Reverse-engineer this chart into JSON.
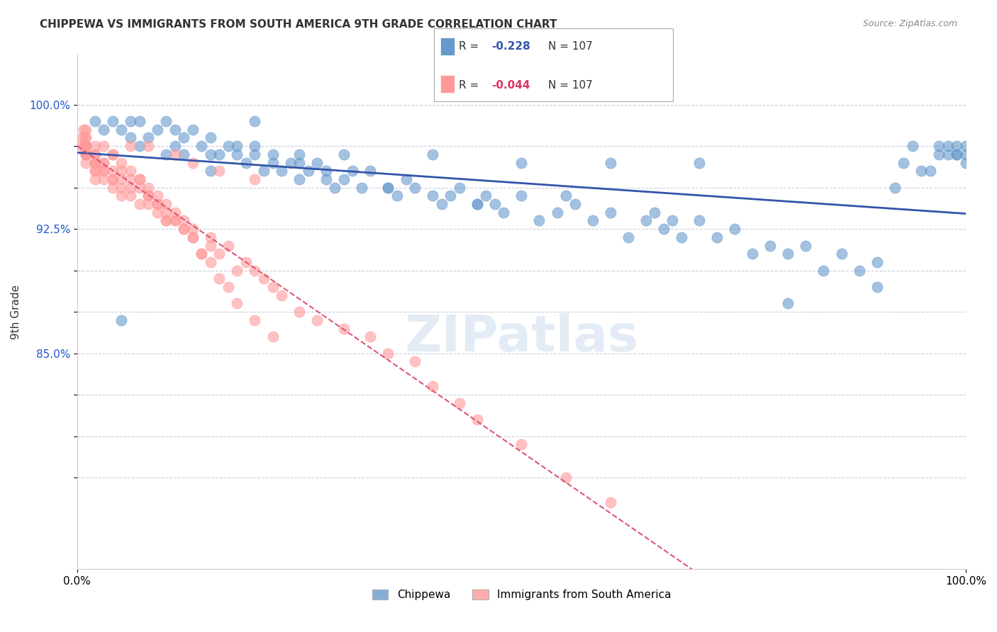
{
  "title": "CHIPPEWA VS IMMIGRANTS FROM SOUTH AMERICA 9TH GRADE CORRELATION CHART",
  "source_text": "Source: ZipAtlas.com",
  "xlabel_bottom": "",
  "ylabel": "9th Grade",
  "watermark": "ZIPatlas",
  "xlim": [
    0.0,
    1.0
  ],
  "ylim": [
    0.72,
    1.03
  ],
  "yticks": [
    0.775,
    0.8,
    0.825,
    0.85,
    0.875,
    0.9,
    0.925,
    0.95,
    0.975,
    1.0
  ],
  "ytick_labels": [
    "",
    "",
    "",
    "85.0%",
    "",
    "",
    "92.5%",
    "",
    "",
    "100.0%"
  ],
  "xtick_labels": [
    "0.0%",
    "100.0%"
  ],
  "legend_blue_r": "R = ",
  "legend_blue_r_val": "-0.228",
  "legend_blue_n": "N = 107",
  "legend_pink_r": "R = ",
  "legend_pink_r_val": "-0.044",
  "legend_pink_n": "N = 107",
  "blue_color": "#6699CC",
  "pink_color": "#FF9999",
  "blue_line_color": "#3355AA",
  "pink_line_color": "#DD5577",
  "grid_color": "#CCCCDD",
  "background_color": "#FFFFFF",
  "blue_scatter_x": [
    0.02,
    0.03,
    0.04,
    0.05,
    0.06,
    0.06,
    0.07,
    0.07,
    0.08,
    0.09,
    0.1,
    0.11,
    0.11,
    0.12,
    0.12,
    0.13,
    0.14,
    0.15,
    0.16,
    0.17,
    0.18,
    0.18,
    0.19,
    0.2,
    0.2,
    0.21,
    0.22,
    0.22,
    0.23,
    0.24,
    0.25,
    0.26,
    0.27,
    0.28,
    0.28,
    0.29,
    0.3,
    0.31,
    0.32,
    0.33,
    0.35,
    0.36,
    0.37,
    0.38,
    0.4,
    0.41,
    0.42,
    0.43,
    0.45,
    0.46,
    0.47,
    0.48,
    0.5,
    0.52,
    0.54,
    0.56,
    0.58,
    0.6,
    0.62,
    0.64,
    0.65,
    0.66,
    0.67,
    0.68,
    0.7,
    0.72,
    0.74,
    0.76,
    0.78,
    0.8,
    0.82,
    0.84,
    0.86,
    0.88,
    0.9,
    0.92,
    0.93,
    0.94,
    0.95,
    0.96,
    0.97,
    0.97,
    0.98,
    0.98,
    0.99,
    0.99,
    0.99,
    1.0,
    1.0,
    1.0,
    0.05,
    0.1,
    0.15,
    0.2,
    0.25,
    0.3,
    0.4,
    0.5,
    0.6,
    0.7,
    0.8,
    0.9,
    0.15,
    0.25,
    0.35,
    0.45,
    0.55
  ],
  "blue_scatter_y": [
    0.99,
    0.985,
    0.99,
    0.985,
    0.98,
    0.99,
    0.975,
    0.99,
    0.98,
    0.985,
    0.99,
    0.975,
    0.985,
    0.97,
    0.98,
    0.985,
    0.975,
    0.98,
    0.97,
    0.975,
    0.97,
    0.975,
    0.965,
    0.97,
    0.975,
    0.96,
    0.965,
    0.97,
    0.96,
    0.965,
    0.955,
    0.96,
    0.965,
    0.955,
    0.96,
    0.95,
    0.955,
    0.96,
    0.95,
    0.96,
    0.95,
    0.945,
    0.955,
    0.95,
    0.945,
    0.94,
    0.945,
    0.95,
    0.94,
    0.945,
    0.94,
    0.935,
    0.945,
    0.93,
    0.935,
    0.94,
    0.93,
    0.935,
    0.92,
    0.93,
    0.935,
    0.925,
    0.93,
    0.92,
    0.93,
    0.92,
    0.925,
    0.91,
    0.915,
    0.91,
    0.915,
    0.9,
    0.91,
    0.9,
    0.905,
    0.95,
    0.965,
    0.975,
    0.96,
    0.96,
    0.97,
    0.975,
    0.97,
    0.975,
    0.97,
    0.975,
    0.97,
    0.965,
    0.97,
    0.975,
    0.87,
    0.97,
    0.97,
    0.99,
    0.97,
    0.97,
    0.97,
    0.965,
    0.965,
    0.965,
    0.88,
    0.89,
    0.96,
    0.965,
    0.95,
    0.94,
    0.945
  ],
  "pink_scatter_x": [
    0.005,
    0.006,
    0.007,
    0.008,
    0.009,
    0.01,
    0.01,
    0.01,
    0.01,
    0.01,
    0.01,
    0.01,
    0.01,
    0.01,
    0.01,
    0.01,
    0.02,
    0.02,
    0.02,
    0.02,
    0.02,
    0.02,
    0.02,
    0.02,
    0.03,
    0.03,
    0.03,
    0.03,
    0.03,
    0.04,
    0.04,
    0.04,
    0.04,
    0.05,
    0.05,
    0.05,
    0.05,
    0.06,
    0.06,
    0.06,
    0.07,
    0.07,
    0.07,
    0.08,
    0.08,
    0.08,
    0.09,
    0.09,
    0.09,
    0.1,
    0.1,
    0.1,
    0.11,
    0.11,
    0.12,
    0.12,
    0.13,
    0.13,
    0.14,
    0.15,
    0.15,
    0.16,
    0.17,
    0.18,
    0.19,
    0.2,
    0.21,
    0.22,
    0.23,
    0.25,
    0.27,
    0.3,
    0.33,
    0.35,
    0.38,
    0.4,
    0.43,
    0.45,
    0.5,
    0.55,
    0.6,
    0.02,
    0.03,
    0.04,
    0.05,
    0.06,
    0.07,
    0.08,
    0.09,
    0.1,
    0.11,
    0.12,
    0.13,
    0.14,
    0.15,
    0.16,
    0.17,
    0.18,
    0.2,
    0.22,
    0.04,
    0.06,
    0.08,
    0.11,
    0.13,
    0.16,
    0.2
  ],
  "pink_scatter_y": [
    0.975,
    0.98,
    0.985,
    0.975,
    0.98,
    0.975,
    0.98,
    0.985,
    0.975,
    0.97,
    0.975,
    0.97,
    0.975,
    0.97,
    0.965,
    0.97,
    0.97,
    0.965,
    0.96,
    0.965,
    0.97,
    0.965,
    0.96,
    0.955,
    0.965,
    0.96,
    0.955,
    0.96,
    0.965,
    0.955,
    0.96,
    0.95,
    0.955,
    0.96,
    0.955,
    0.95,
    0.945,
    0.955,
    0.95,
    0.945,
    0.94,
    0.95,
    0.955,
    0.94,
    0.945,
    0.95,
    0.94,
    0.945,
    0.935,
    0.93,
    0.935,
    0.94,
    0.93,
    0.935,
    0.925,
    0.93,
    0.92,
    0.925,
    0.91,
    0.915,
    0.92,
    0.91,
    0.915,
    0.9,
    0.905,
    0.9,
    0.895,
    0.89,
    0.885,
    0.875,
    0.87,
    0.865,
    0.86,
    0.85,
    0.845,
    0.83,
    0.82,
    0.81,
    0.795,
    0.775,
    0.76,
    0.975,
    0.975,
    0.97,
    0.965,
    0.96,
    0.955,
    0.945,
    0.94,
    0.93,
    0.93,
    0.925,
    0.92,
    0.91,
    0.905,
    0.895,
    0.89,
    0.88,
    0.87,
    0.86,
    0.97,
    0.975,
    0.975,
    0.97,
    0.965,
    0.96,
    0.955
  ]
}
